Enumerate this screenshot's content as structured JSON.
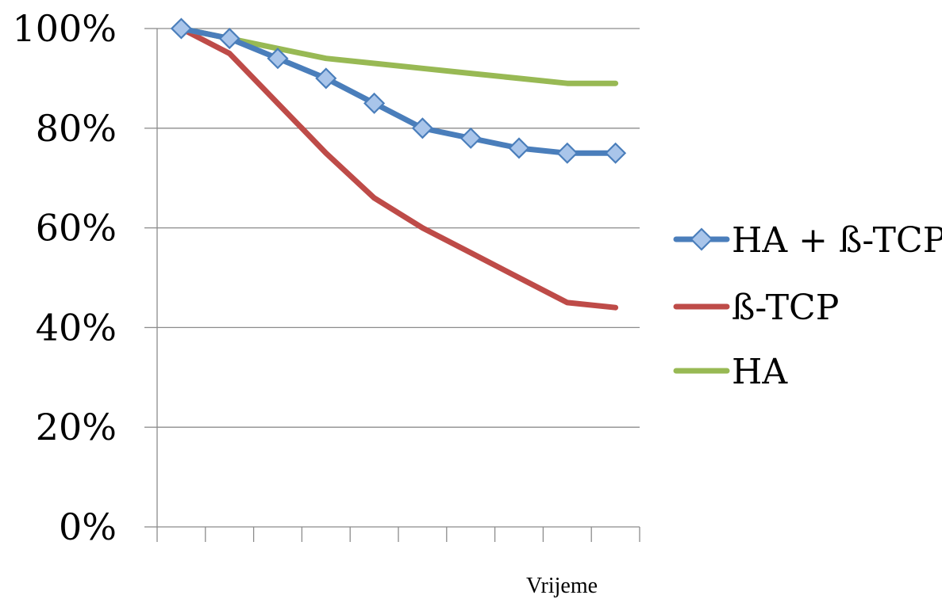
{
  "chart_data": {
    "type": "line",
    "xlabel": "Vrijeme",
    "ylabel": "",
    "ylim": [
      0,
      100
    ],
    "y_ticks": [
      "0%",
      "20%",
      "40%",
      "60%",
      "80%",
      "100%"
    ],
    "y_tick_values": [
      0,
      20,
      40,
      60,
      80,
      100
    ],
    "grid": "horizontal",
    "legend_position": "right",
    "series": [
      {
        "name": "HA + ß-TCP",
        "color": "#4a7ebb",
        "marker": "diamond",
        "marker_fill": "#a9c5ea",
        "values": [
          100,
          98,
          94,
          90,
          85,
          80,
          78,
          76,
          75,
          75
        ]
      },
      {
        "name": "ß-TCP",
        "color": "#be4b48",
        "marker": "none",
        "values": [
          100,
          95,
          85,
          75,
          66,
          60,
          55,
          50,
          45,
          44
        ]
      },
      {
        "name": "HA",
        "color": "#98b954",
        "marker": "none",
        "values": [
          100,
          98,
          96,
          94,
          93,
          92,
          91,
          90,
          89,
          89
        ]
      }
    ]
  }
}
